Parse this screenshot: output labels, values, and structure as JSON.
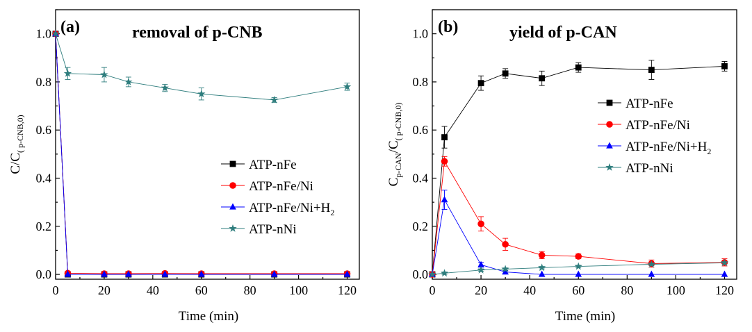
{
  "chart_data": [
    {
      "type": "line",
      "panel_label": "(a)",
      "title": "removal of p-CNB",
      "xlabel": "Time (min)",
      "ylabel_main": "C/C",
      "ylabel_sub": "( p-CNB,0)",
      "xlim": [
        0,
        125
      ],
      "ylim": [
        -0.02,
        1.1
      ],
      "xticks": [
        "0",
        "20",
        "40",
        "60",
        "80",
        "100",
        "120"
      ],
      "yticks": [
        "0.0",
        "0.2",
        "0.4",
        "0.6",
        "0.8",
        "1.0"
      ],
      "legend_position": "middle-right",
      "x": [
        0,
        5,
        20,
        30,
        45,
        60,
        90,
        120
      ],
      "series": [
        {
          "name": "ATP-nFe",
          "marker": "square",
          "color": "#000000",
          "values": [
            1.0,
            0.0,
            0.0,
            0.0,
            0.0,
            0.0,
            0.0,
            0.0
          ],
          "errors": [
            0,
            0,
            0,
            0,
            0,
            0,
            0,
            0
          ]
        },
        {
          "name": "ATP-nFe/Ni",
          "marker": "circle",
          "color": "#ff0000",
          "values": [
            1.0,
            0.005,
            0.003,
            0.003,
            0.004,
            0.003,
            0.003,
            0.003
          ],
          "errors": [
            0,
            0.003,
            0.002,
            0.002,
            0.002,
            0.002,
            0.002,
            0.002
          ]
        },
        {
          "name": "ATP-nFe/Ni+H",
          "name_sub": "2",
          "marker": "triangle",
          "color": "#0000ff",
          "values": [
            1.0,
            0.0,
            0.0,
            0.0,
            0.0,
            0.0,
            0.0,
            0.0
          ],
          "errors": [
            0,
            0,
            0,
            0,
            0,
            0,
            0,
            0
          ]
        },
        {
          "name": "ATP-nNi",
          "marker": "star",
          "color": "#2e7d7d",
          "values": [
            1.0,
            0.835,
            0.83,
            0.8,
            0.775,
            0.75,
            0.725,
            0.78
          ],
          "errors": [
            0,
            0.025,
            0.03,
            0.02,
            0.015,
            0.025,
            0.01,
            0.015
          ]
        }
      ]
    },
    {
      "type": "line",
      "panel_label": "(b)",
      "title": "yield of p-CAN",
      "xlabel": "Time (min)",
      "ylabel_main": "C",
      "ylabel_sub1": "p-CAN",
      "ylabel_mid": "/C",
      "ylabel_sub2": "( p-CNB,0)",
      "xlim": [
        0,
        125
      ],
      "ylim": [
        -0.02,
        1.1
      ],
      "xticks": [
        "0",
        "20",
        "40",
        "60",
        "80",
        "100",
        "120"
      ],
      "yticks": [
        "0.0",
        "0.2",
        "0.4",
        "0.6",
        "0.8",
        "1.0"
      ],
      "legend_position": "middle-right",
      "x": [
        0,
        5,
        20,
        30,
        45,
        60,
        90,
        120
      ],
      "series": [
        {
          "name": "ATP-nFe",
          "marker": "square",
          "color": "#000000",
          "values": [
            0.0,
            0.57,
            0.795,
            0.835,
            0.815,
            0.86,
            0.85,
            0.865
          ],
          "errors": [
            0,
            0.045,
            0.03,
            0.02,
            0.03,
            0.02,
            0.04,
            0.02
          ]
        },
        {
          "name": "ATP-nFe/Ni",
          "marker": "circle",
          "color": "#ff0000",
          "values": [
            0.0,
            0.47,
            0.21,
            0.125,
            0.08,
            0.075,
            0.045,
            0.05
          ],
          "errors": [
            0,
            0.02,
            0.03,
            0.025,
            0.015,
            0.01,
            0.015,
            0.015
          ]
        },
        {
          "name": "ATP-nFe/Ni+H",
          "name_sub": "2",
          "marker": "triangle",
          "color": "#0000ff",
          "values": [
            0.0,
            0.31,
            0.04,
            0.01,
            0.0,
            0.0,
            0.0,
            0.0
          ],
          "errors": [
            0,
            0.04,
            0.01,
            0.005,
            0,
            0,
            0,
            0
          ]
        },
        {
          "name": "ATP-nNi",
          "marker": "star",
          "color": "#2e7d7d",
          "values": [
            0.0,
            0.005,
            0.018,
            0.022,
            0.028,
            0.033,
            0.042,
            0.048
          ],
          "errors": [
            0,
            0.005,
            0.005,
            0.005,
            0.005,
            0.005,
            0.005,
            0.005
          ]
        }
      ]
    }
  ]
}
